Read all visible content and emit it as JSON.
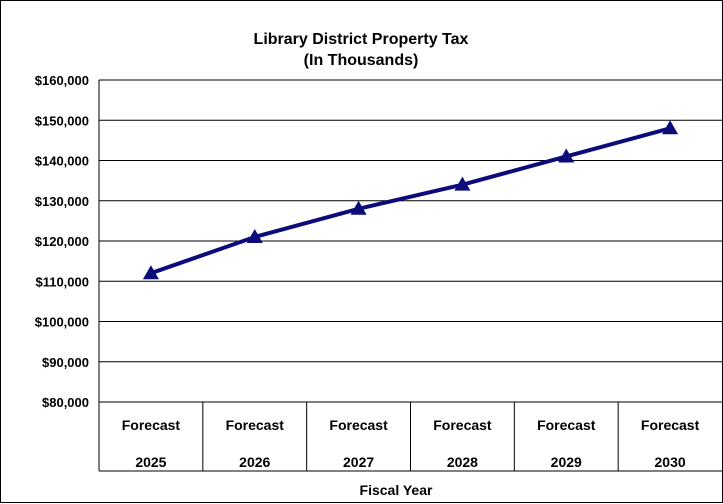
{
  "chart_data": {
    "type": "line",
    "title": "Library District Property Tax",
    "subtitle": "(In Thousands)",
    "xlabel": "Fiscal Year",
    "ylabel": "",
    "categories": [
      {
        "top": "Forecast",
        "bottom": "2025"
      },
      {
        "top": "Forecast",
        "bottom": "2026"
      },
      {
        "top": "Forecast",
        "bottom": "2027"
      },
      {
        "top": "Forecast",
        "bottom": "2028"
      },
      {
        "top": "Forecast",
        "bottom": "2029"
      },
      {
        "top": "Forecast",
        "bottom": "2030"
      }
    ],
    "series": [
      {
        "values": [
          112000,
          121000,
          128000,
          134000,
          141000,
          148000
        ],
        "color": "#0B0B7A",
        "marker": "triangle"
      }
    ],
    "ylim": [
      80000,
      160000
    ],
    "ytick_step": 10000,
    "ytick_labels": [
      "$80,000",
      "$90,000",
      "$100,000",
      "$110,000",
      "$120,000",
      "$130,000",
      "$140,000",
      "$150,000",
      "$160,000"
    ],
    "grid": true,
    "legend": "none"
  }
}
